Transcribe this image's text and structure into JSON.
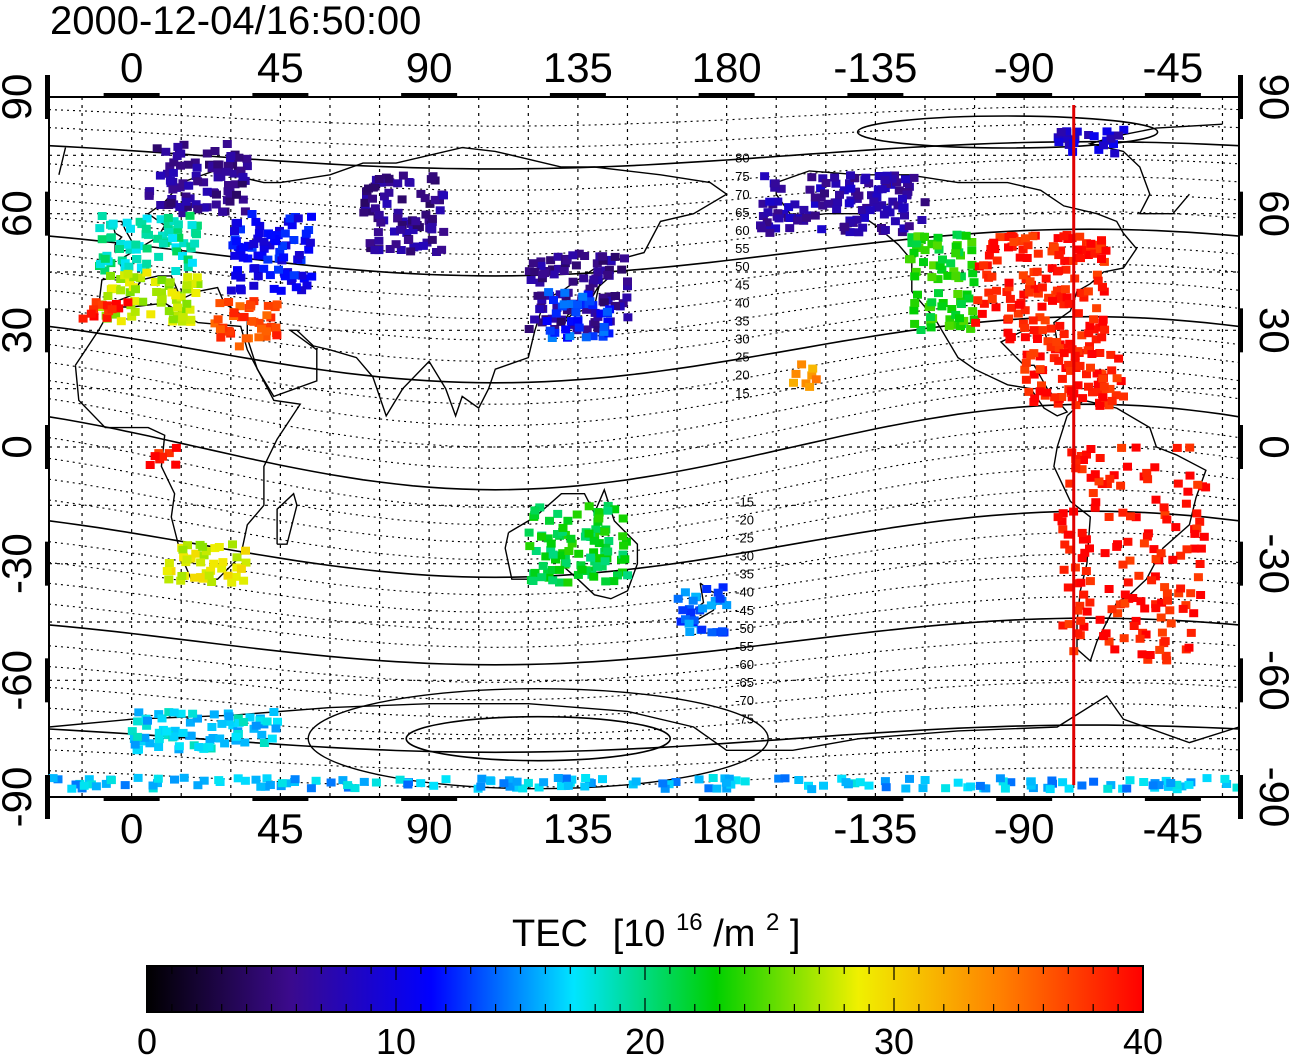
{
  "timestamp": "2000-12-04/16:50:00",
  "longitude_ticks": [
    "0",
    "45",
    "90",
    "135",
    "180",
    "-135",
    "-90",
    "-45"
  ],
  "latitude_ticks": [
    "90",
    "60",
    "30",
    "0",
    "-30",
    "-60",
    "-90"
  ],
  "contour_labels": {
    "north": [
      "80",
      "75",
      "70",
      "65",
      "60",
      "55",
      "50",
      "45",
      "40",
      "35",
      "30",
      "25",
      "20",
      "15"
    ],
    "south": [
      "-15",
      "-20",
      "-25",
      "-30",
      "-35",
      "-40",
      "-45",
      "-50",
      "-55",
      "-60",
      "-65",
      "-70",
      "-75"
    ]
  },
  "colorbar": {
    "title": "TEC",
    "unit_base": "[10",
    "unit_exp": "16",
    "unit_mid": "/m",
    "unit_exp2": "2",
    "unit_end": "]",
    "min": 0,
    "max": 40,
    "tick_labels": [
      "0",
      "10",
      "20",
      "30",
      "40"
    ],
    "colors": [
      "#000000",
      "#3b0a8c",
      "#0000ff",
      "#00e5ff",
      "#00d000",
      "#f0f000",
      "#ff8000",
      "#ff0000"
    ]
  },
  "meridian_marker": {
    "longitude": -75,
    "color": "#e00000"
  },
  "tec_regions": [
    {
      "name": "europe-north",
      "lon": [
        5,
        35
      ],
      "lat": [
        60,
        78
      ],
      "tec": 6
    },
    {
      "name": "europe-central",
      "lon": [
        -10,
        20
      ],
      "lat": [
        45,
        60
      ],
      "tec": 19
    },
    {
      "name": "europe-south",
      "lon": [
        -10,
        20
      ],
      "lat": [
        32,
        45
      ],
      "tec": 27
    },
    {
      "name": "iberia",
      "lon": [
        -15,
        0
      ],
      "lat": [
        33,
        38
      ],
      "tec": 39
    },
    {
      "name": "russia-west",
      "lon": [
        30,
        55
      ],
      "lat": [
        40,
        60
      ],
      "tec": 11
    },
    {
      "name": "middle-east",
      "lon": [
        25,
        45
      ],
      "lat": [
        25,
        38
      ],
      "tec": 37
    },
    {
      "name": "siberia",
      "lon": [
        70,
        95
      ],
      "lat": [
        50,
        70
      ],
      "tec": 6
    },
    {
      "name": "east-asia",
      "lon": [
        120,
        150
      ],
      "lat": [
        30,
        50
      ],
      "tec": 6
    },
    {
      "name": "japan",
      "lon": [
        125,
        145
      ],
      "lat": [
        28,
        40
      ],
      "tec": 13
    },
    {
      "name": "alaska-canada",
      "lon": [
        -170,
        -120
      ],
      "lat": [
        55,
        70
      ],
      "tec": 7
    },
    {
      "name": "north-america-west",
      "lon": [
        -125,
        -105
      ],
      "lat": [
        30,
        55
      ],
      "tec": 23
    },
    {
      "name": "north-america-east",
      "lon": [
        -105,
        -65
      ],
      "lat": [
        25,
        55
      ],
      "tec": 39
    },
    {
      "name": "caribbean",
      "lon": [
        -90,
        -60
      ],
      "lat": [
        10,
        25
      ],
      "tec": 39
    },
    {
      "name": "south-america",
      "lon": [
        -80,
        -35
      ],
      "lat": [
        -55,
        0
      ],
      "tec": 39
    },
    {
      "name": "africa-south",
      "lon": [
        10,
        35
      ],
      "lat": [
        -35,
        -25
      ],
      "tec": 28
    },
    {
      "name": "africa-west",
      "lon": [
        5,
        15
      ],
      "lat": [
        -5,
        0
      ],
      "tec": 39
    },
    {
      "name": "australia",
      "lon": [
        120,
        150
      ],
      "lat": [
        -35,
        -15
      ],
      "tec": 22
    },
    {
      "name": "new-zealand",
      "lon": [
        165,
        180
      ],
      "lat": [
        -48,
        -35
      ],
      "tec": 14
    },
    {
      "name": "hawaii",
      "lon": [
        -160,
        -153
      ],
      "lat": [
        15,
        22
      ],
      "tec": 33
    },
    {
      "name": "greenland",
      "lon": [
        -80,
        -60
      ],
      "lat": [
        75,
        82
      ],
      "tec": 9
    },
    {
      "name": "antarctica-coast",
      "lon": [
        0,
        45
      ],
      "lat": [
        -78,
        -68
      ],
      "tec": 17
    },
    {
      "name": "antarctica-pole",
      "lon": [
        -25,
        335
      ],
      "lat": [
        -88,
        -85
      ],
      "tec": 16
    }
  ]
}
